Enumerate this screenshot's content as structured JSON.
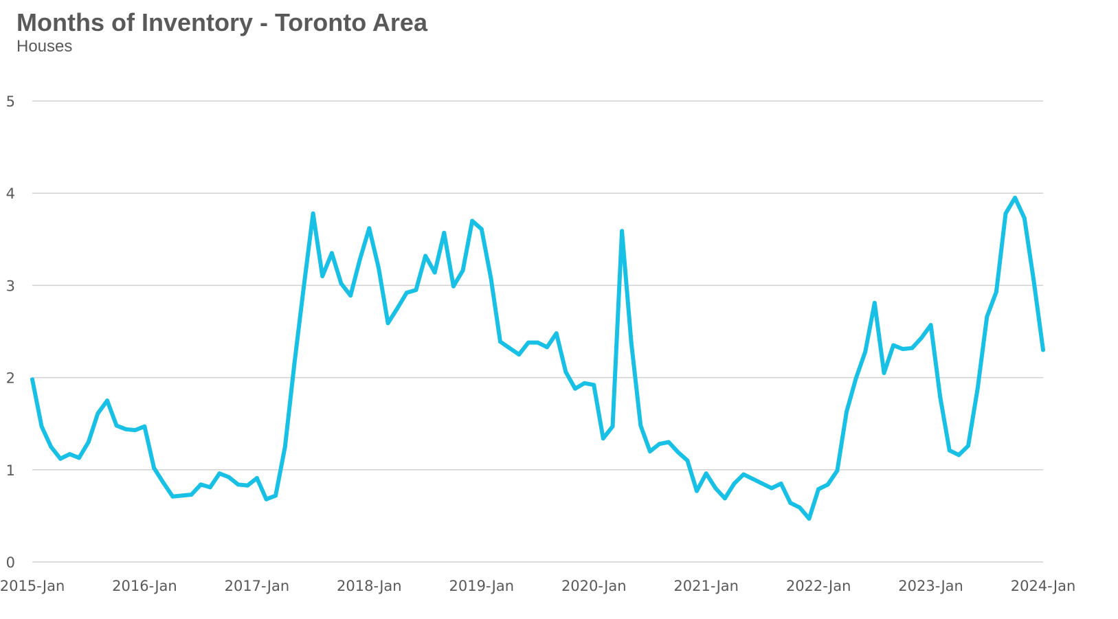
{
  "chart_data": {
    "type": "line",
    "title": "Months of Inventory - Toronto Area",
    "subtitle": "Houses",
    "xlabel": "",
    "ylabel": "",
    "ylim": [
      0,
      5
    ],
    "yticks": [
      0,
      1,
      2,
      3,
      4,
      5
    ],
    "grid": true,
    "legend": "none",
    "x_tick_labels": [
      "2015-Jan",
      "2016-Jan",
      "2017-Jan",
      "2018-Jan",
      "2019-Jan",
      "2020-Jan",
      "2021-Jan",
      "2022-Jan",
      "2023-Jan",
      "2024-Jan"
    ],
    "line_color": "#19C0E6",
    "series": [
      {
        "x": [
          "2015-Jan",
          "2015-Feb",
          "2015-Mar",
          "2015-Apr",
          "2015-May",
          "2015-Jun",
          "2015-Jul",
          "2015-Aug",
          "2015-Sep",
          "2015-Oct",
          "2015-Nov",
          "2015-Dec",
          "2016-Jan",
          "2016-Feb",
          "2016-Mar",
          "2016-Apr",
          "2016-May",
          "2016-Jun",
          "2016-Jul",
          "2016-Aug",
          "2016-Sep",
          "2016-Oct",
          "2016-Nov",
          "2016-Dec",
          "2017-Jan",
          "2017-Feb",
          "2017-Mar",
          "2017-Apr",
          "2017-May",
          "2017-Jun",
          "2017-Jul",
          "2017-Aug",
          "2017-Sep",
          "2017-Oct",
          "2017-Nov",
          "2017-Dec",
          "2018-Jan",
          "2018-Feb",
          "2018-Mar",
          "2018-Apr",
          "2018-May",
          "2018-Jun",
          "2018-Jul",
          "2018-Aug",
          "2018-Sep",
          "2018-Oct",
          "2018-Nov",
          "2018-Dec",
          "2019-Jan",
          "2019-Feb",
          "2019-Mar",
          "2019-Apr",
          "2019-May",
          "2019-Jun",
          "2019-Jul",
          "2019-Aug",
          "2019-Sep",
          "2019-Oct",
          "2019-Nov",
          "2019-Dec",
          "2020-Jan",
          "2020-Feb",
          "2020-Mar",
          "2020-Apr",
          "2020-May",
          "2020-Jun",
          "2020-Jul",
          "2020-Aug",
          "2020-Sep",
          "2020-Oct",
          "2020-Nov",
          "2020-Dec",
          "2021-Jan",
          "2021-Feb",
          "2021-Mar",
          "2021-Apr",
          "2021-May",
          "2021-Jun",
          "2021-Jul",
          "2021-Aug",
          "2021-Sep",
          "2021-Oct",
          "2021-Nov",
          "2021-Dec",
          "2022-Jan",
          "2022-Feb",
          "2022-Mar",
          "2022-Apr",
          "2022-May",
          "2022-Jun",
          "2022-Jul",
          "2022-Aug",
          "2022-Sep",
          "2022-Oct",
          "2022-Nov",
          "2022-Dec",
          "2023-Jan",
          "2023-Feb",
          "2023-Mar",
          "2023-Apr",
          "2023-May",
          "2023-Jun",
          "2023-Jul",
          "2023-Aug",
          "2023-Sep",
          "2023-Oct",
          "2023-Nov",
          "2023-Dec",
          "2024-Jan"
        ],
        "values": [
          1.98,
          1.47,
          1.25,
          1.12,
          1.17,
          1.13,
          1.3,
          1.61,
          1.75,
          1.48,
          1.44,
          1.43,
          1.47,
          1.02,
          0.86,
          0.71,
          0.72,
          0.73,
          0.84,
          0.81,
          0.96,
          0.92,
          0.84,
          0.83,
          0.91,
          0.68,
          0.72,
          1.25,
          2.15,
          2.98,
          3.78,
          3.1,
          3.35,
          3.02,
          2.89,
          3.28,
          3.62,
          3.19,
          2.59,
          2.75,
          2.92,
          2.95,
          3.32,
          3.14,
          3.57,
          2.99,
          3.16,
          3.7,
          3.61,
          3.08,
          2.39,
          2.32,
          2.25,
          2.38,
          2.38,
          2.33,
          2.48,
          2.06,
          1.88,
          1.94,
          1.92,
          1.34,
          1.47,
          3.59,
          2.38,
          1.48,
          1.2,
          1.28,
          1.3,
          1.19,
          1.1,
          0.77,
          0.96,
          0.8,
          0.69,
          0.85,
          0.95,
          0.9,
          0.85,
          0.8,
          0.85,
          0.64,
          0.59,
          0.47,
          0.79,
          0.84,
          0.99,
          1.63,
          1.99,
          2.28,
          2.81,
          2.05,
          2.35,
          2.31,
          2.32,
          2.43,
          2.57,
          1.79,
          1.21,
          1.16,
          1.26,
          1.88,
          2.66,
          2.93,
          3.78,
          3.95,
          3.73,
          3.05,
          2.3
        ]
      }
    ]
  }
}
